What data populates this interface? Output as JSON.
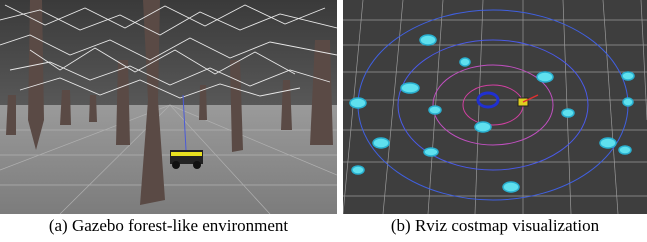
{
  "figure": {
    "panels": [
      {
        "caption": "(a) Gazebo forest-like environment"
      },
      {
        "caption": "(b) Rviz costmap visualization"
      }
    ]
  }
}
